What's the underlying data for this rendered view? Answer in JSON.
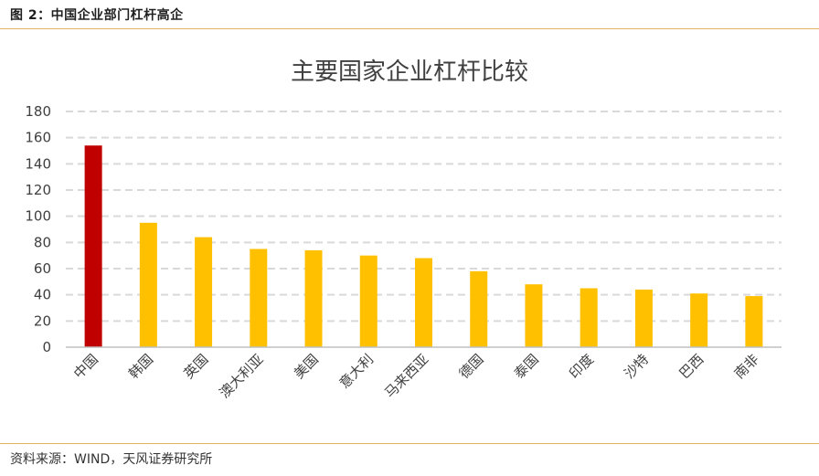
{
  "figure": {
    "caption": "图 2：中国企业部门杠杆高企",
    "source": "资料来源：WIND，天风证券研究所"
  },
  "colors": {
    "highlight_bar": "#c00000",
    "bar": "#ffc000",
    "gridline": "#d9d9d9",
    "rule": "#e2b366"
  },
  "chart_data": {
    "type": "bar",
    "title": "主要国家企业杠杆比较",
    "xlabel": "",
    "ylabel": "",
    "ylim": [
      0,
      180
    ],
    "yticks": [
      0,
      20,
      40,
      60,
      80,
      100,
      120,
      140,
      160,
      180
    ],
    "grid": true,
    "legend": "none",
    "categories": [
      "中国",
      "韩国",
      "英国",
      "澳大利亚",
      "美国",
      "意大利",
      "马来西亚",
      "德国",
      "泰国",
      "印度",
      "沙特",
      "巴西",
      "南非"
    ],
    "values": [
      154,
      95,
      84,
      75,
      74,
      70,
      68,
      58,
      48,
      45,
      44,
      41,
      39
    ],
    "highlight_index": 0
  }
}
